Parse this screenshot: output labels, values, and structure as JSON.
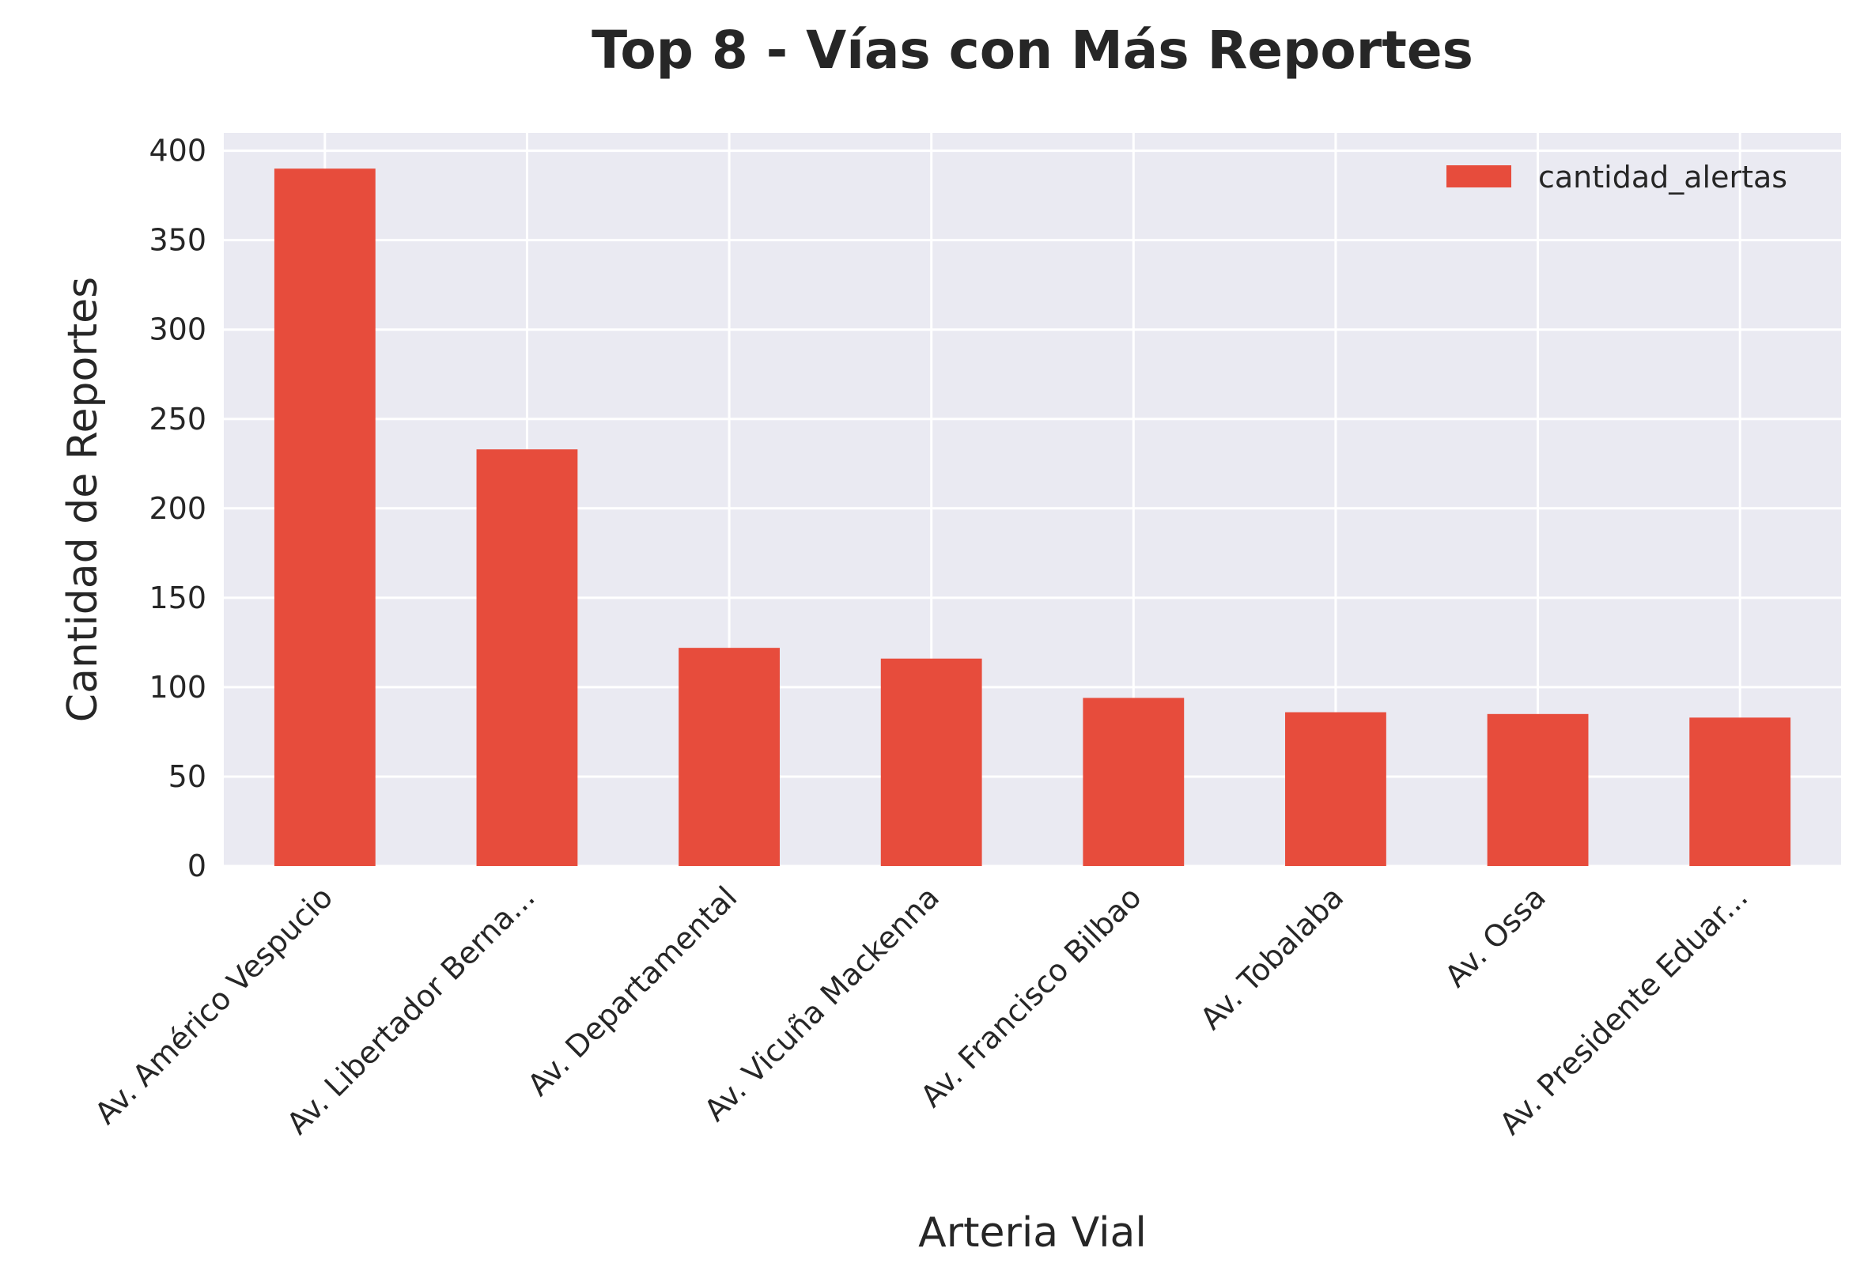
{
  "chart_data": {
    "type": "bar",
    "title": "Top 8 - Vías con Más Reportes",
    "xlabel": "Arteria Vial",
    "ylabel": "Cantidad de Reportes",
    "categories": [
      "Av. Américo Vespucio",
      "Av. Libertador Berna...",
      "Av. Departamental",
      "Av. Vicuña Mackenna",
      "Av. Francisco Bilbao",
      "Av. Tobalaba",
      "Av. Ossa",
      "Av. Presidente Eduar..."
    ],
    "series": [
      {
        "name": "cantidad_alertas",
        "values": [
          390,
          233,
          122,
          116,
          94,
          86,
          85,
          83
        ],
        "color": "#e74c3c"
      }
    ],
    "ylim": [
      0,
      410
    ],
    "yticks": [
      0,
      50,
      100,
      150,
      200,
      250,
      300,
      350,
      400
    ],
    "grid": true,
    "legend": "top-right",
    "background": "#eaeaf2",
    "gridcolor": "#ffffff"
  }
}
